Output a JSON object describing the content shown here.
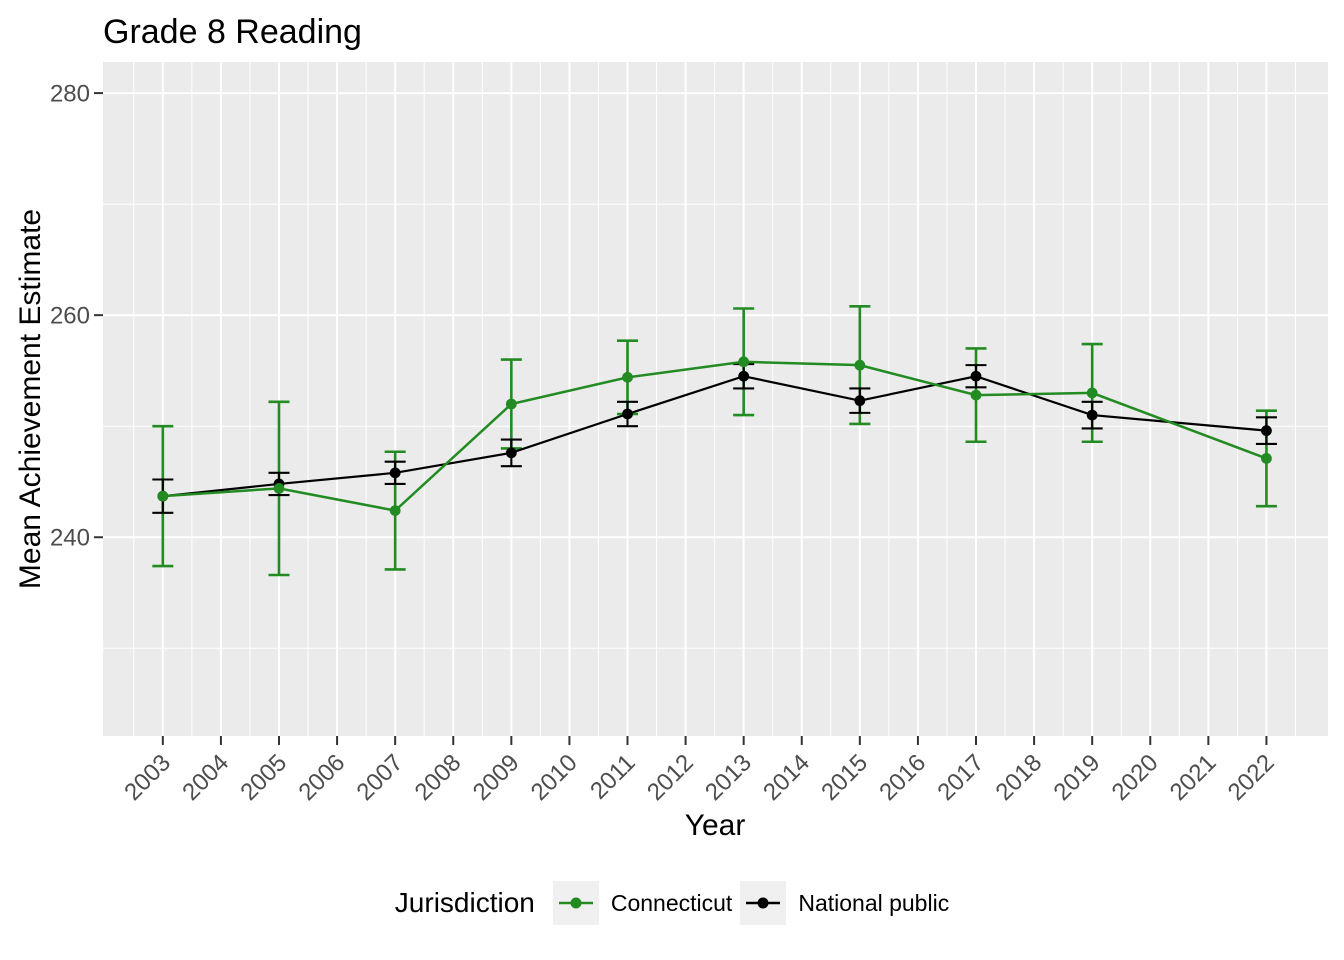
{
  "title": "Grade 8 Reading",
  "legend": {
    "title": "Jurisdiction",
    "entries": [
      "Connecticut",
      "National public"
    ]
  },
  "axes": {
    "x_title": "Year",
    "y_title": "Mean Achievement Estimate",
    "x_ticks": [
      2003,
      2004,
      2005,
      2006,
      2007,
      2008,
      2009,
      2010,
      2011,
      2012,
      2013,
      2014,
      2015,
      2016,
      2017,
      2018,
      2019,
      2020,
      2021,
      2022
    ],
    "y_ticks": [
      240,
      260,
      280
    ],
    "y_minor_ticks": [
      230,
      250,
      270
    ],
    "x_domain": [
      2001.97,
      2023.06
    ],
    "y_domain": [
      222.1,
      282.8
    ]
  },
  "chart_data": {
    "type": "line",
    "title": "Grade 8 Reading",
    "xlabel": "Year",
    "ylabel": "Mean Achievement Estimate",
    "legend_title": "Jurisdiction",
    "legend_position": "bottom",
    "grid": true,
    "error_bars": true,
    "x": [
      2003,
      2005,
      2007,
      2009,
      2011,
      2013,
      2015,
      2017,
      2019,
      2022
    ],
    "xlim": [
      2001.97,
      2023.06
    ],
    "ylim": [
      222.1,
      282.8
    ],
    "series": [
      {
        "name": "Connecticut",
        "color": "#228B22",
        "values": [
          243.7,
          244.4,
          242.4,
          252.0,
          254.4,
          255.8,
          255.5,
          252.8,
          253.0,
          247.1
        ],
        "ci_halfwidth": [
          6.3,
          7.8,
          5.3,
          4.0,
          3.3,
          4.8,
          5.3,
          4.2,
          4.4,
          4.3
        ]
      },
      {
        "name": "National public",
        "color": "#000000",
        "values": [
          243.7,
          244.8,
          245.8,
          247.6,
          251.1,
          254.5,
          252.3,
          254.5,
          251.0,
          249.6
        ],
        "ci_halfwidth": [
          1.5,
          1.0,
          1.0,
          1.2,
          1.1,
          1.1,
          1.1,
          1.0,
          1.2,
          1.2
        ]
      }
    ]
  },
  "colors": {
    "background": "#FFFFFF",
    "panel_bg": "#EBEBEB",
    "grid": "#FFFFFF",
    "tick_mark": "#333333",
    "tick_label": "#4D4D4D",
    "legend_key_bg": "#F0F0F0",
    "connecticut": "#228B22",
    "national_public": "#000000"
  }
}
